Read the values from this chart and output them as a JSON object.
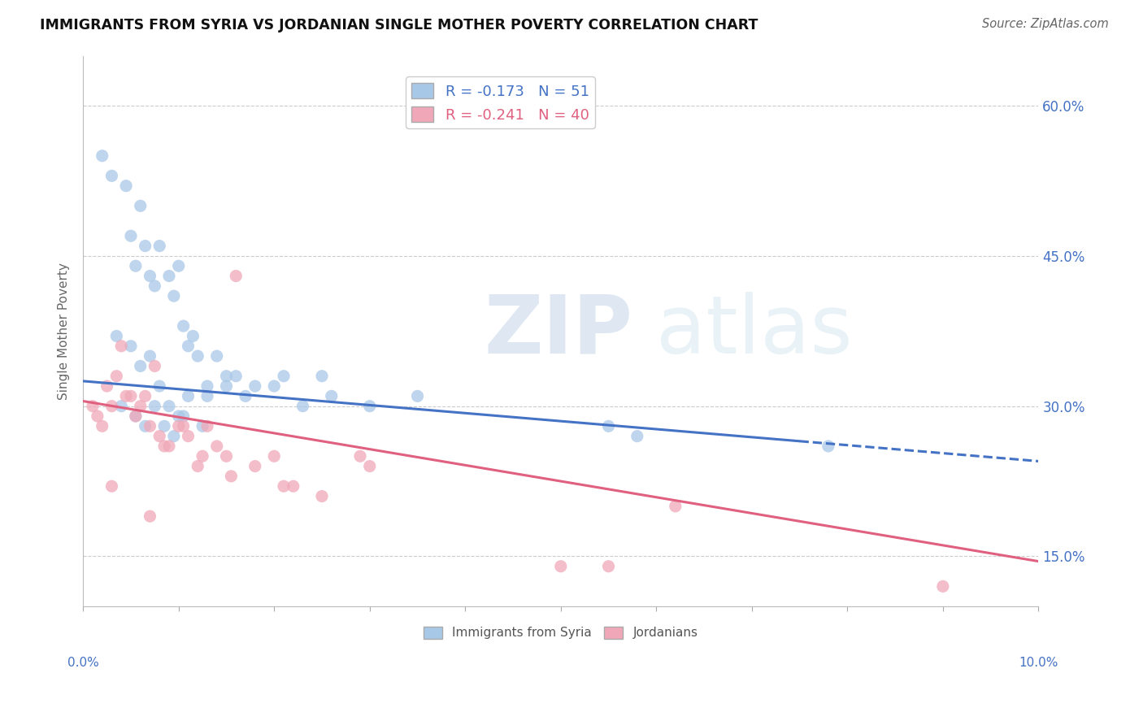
{
  "title": "IMMIGRANTS FROM SYRIA VS JORDANIAN SINGLE MOTHER POVERTY CORRELATION CHART",
  "source": "Source: ZipAtlas.com",
  "ylabel": "Single Mother Poverty",
  "xlim": [
    0.0,
    10.0
  ],
  "ylim": [
    10.0,
    65.0
  ],
  "yticks": [
    15.0,
    30.0,
    45.0,
    60.0
  ],
  "xticks": [
    0.0,
    1.0,
    2.0,
    3.0,
    4.0,
    5.0,
    6.0,
    7.0,
    8.0,
    9.0,
    10.0
  ],
  "blue_r": -0.173,
  "blue_n": 51,
  "pink_r": -0.241,
  "pink_n": 40,
  "blue_color": "#a8c8e8",
  "pink_color": "#f0a8b8",
  "blue_line_color": "#4472c4",
  "pink_line_color": "#e06080",
  "legend_label_blue": "Immigrants from Syria",
  "legend_label_pink": "Jordanians",
  "blue_line_x0": 0.0,
  "blue_line_y0": 32.5,
  "blue_line_x1": 10.0,
  "blue_line_y1": 24.5,
  "blue_solid_end": 7.5,
  "pink_line_x0": 0.0,
  "pink_line_y0": 30.5,
  "pink_line_x1": 10.0,
  "pink_line_y1": 14.5,
  "blue_points_x": [
    0.3,
    0.45,
    0.5,
    0.55,
    0.6,
    0.65,
    0.7,
    0.75,
    0.8,
    0.9,
    0.95,
    1.0,
    1.05,
    1.1,
    1.15,
    1.2,
    1.3,
    1.4,
    1.5,
    1.6,
    1.7,
    1.8,
    2.0,
    2.1,
    2.3,
    2.6,
    3.0,
    3.5,
    0.2,
    0.35,
    0.5,
    0.6,
    0.7,
    0.8,
    0.9,
    1.0,
    1.1,
    1.3,
    1.5,
    2.5,
    5.5,
    5.8,
    0.4,
    0.55,
    0.65,
    0.75,
    0.85,
    0.95,
    1.05,
    1.25,
    7.8
  ],
  "blue_points_y": [
    53,
    52,
    47,
    44,
    50,
    46,
    43,
    42,
    46,
    43,
    41,
    44,
    38,
    36,
    37,
    35,
    32,
    35,
    33,
    33,
    31,
    32,
    32,
    33,
    30,
    31,
    30,
    31,
    55,
    37,
    36,
    34,
    35,
    32,
    30,
    29,
    31,
    31,
    32,
    33,
    28,
    27,
    30,
    29,
    28,
    30,
    28,
    27,
    29,
    28,
    26
  ],
  "pink_points_x": [
    0.1,
    0.15,
    0.2,
    0.25,
    0.3,
    0.4,
    0.5,
    0.55,
    0.6,
    0.7,
    0.75,
    0.8,
    0.9,
    1.0,
    1.1,
    1.2,
    1.3,
    1.4,
    1.5,
    1.6,
    1.8,
    2.0,
    2.2,
    2.5,
    2.9,
    0.35,
    0.45,
    0.65,
    0.85,
    1.05,
    1.25,
    1.55,
    2.1,
    3.0,
    5.0,
    5.5,
    6.2,
    9.0,
    0.3,
    0.7
  ],
  "pink_points_y": [
    30,
    29,
    28,
    32,
    30,
    36,
    31,
    29,
    30,
    28,
    34,
    27,
    26,
    28,
    27,
    24,
    28,
    26,
    25,
    43,
    24,
    25,
    22,
    21,
    25,
    33,
    31,
    31,
    26,
    28,
    25,
    23,
    22,
    24,
    14,
    14,
    20,
    12,
    22,
    19
  ]
}
